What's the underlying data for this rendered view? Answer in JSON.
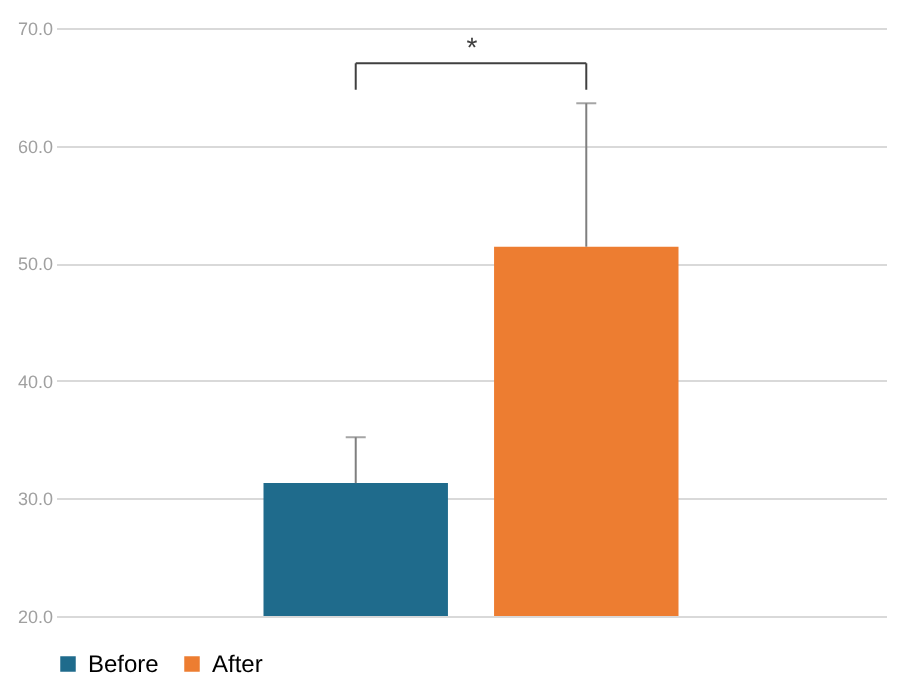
{
  "chart_data": {
    "type": "bar",
    "categories": [
      null
    ],
    "series": [
      {
        "name": "Before",
        "color": "#1f6b8c",
        "values": [
          31.3
        ],
        "errors": [
          [
            31.3,
            35.2
          ]
        ]
      },
      {
        "name": "After",
        "color": "#ed7d31",
        "values": [
          51.4
        ],
        "errors": [
          [
            51.4,
            63.6
          ]
        ]
      }
    ],
    "ylim": [
      20,
      70
    ],
    "yticks": [
      {
        "value": 20,
        "label": "20.0"
      },
      {
        "value": 30,
        "label": "30.0"
      },
      {
        "value": 40,
        "label": "40.0"
      },
      {
        "value": 50,
        "label": "50.0"
      },
      {
        "value": 60,
        "label": "60.0"
      },
      {
        "value": 70,
        "label": "70.0"
      }
    ],
    "grid": "y",
    "legend": "bottom",
    "annotations": [
      "*"
    ]
  }
}
